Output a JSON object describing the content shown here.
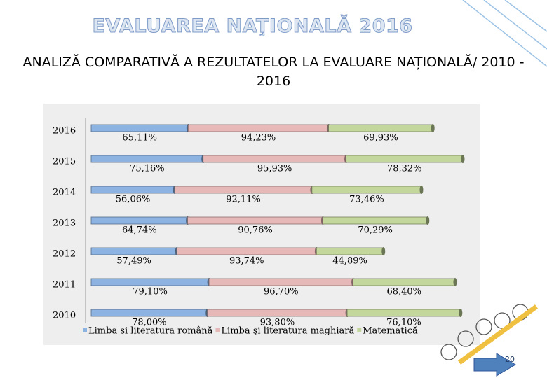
{
  "header": {
    "title": "EVALUAREA NAŢIONALĂ 2016",
    "subtitle": "ANALIZĂ COMPARATIVĂ A REZULTATELOR LA EVALUARE NAȚIONALĂ/ 2010 - 2016"
  },
  "page_number": "20",
  "chart_data": {
    "type": "stacked-bar-horizontal",
    "categories": [
      "2016",
      "2015",
      "2014",
      "2013",
      "2012",
      "2011",
      "2010"
    ],
    "legend": "bottom",
    "series": [
      {
        "name": "Limba şi literatura română",
        "color": "#8db3e2",
        "values": [
          65.11,
          75.16,
          56.06,
          64.74,
          57.49,
          79.1,
          78.0
        ],
        "value_labels": [
          "65,11%",
          "75,16%",
          "56,06%",
          "64,74%",
          "57,49%",
          "79,10%",
          "78,00%"
        ]
      },
      {
        "name": "Limba şi literatura maghiară",
        "color": "#e6b9b8",
        "values": [
          94.23,
          95.93,
          92.11,
          90.76,
          93.74,
          96.7,
          93.8
        ],
        "value_labels": [
          "94,23%",
          "95,93%",
          "92,11%",
          "90,76%",
          "93,74%",
          "96,70%",
          "93,80%"
        ]
      },
      {
        "name": "Matematică",
        "color": "#c3d69b",
        "values": [
          69.93,
          78.32,
          73.46,
          70.29,
          44.89,
          68.4,
          76.1
        ],
        "value_labels": [
          "69,93%",
          "78,32%",
          "73,46%",
          "70,29%",
          "44,89%",
          "68,40%",
          "76,10%"
        ]
      }
    ]
  }
}
